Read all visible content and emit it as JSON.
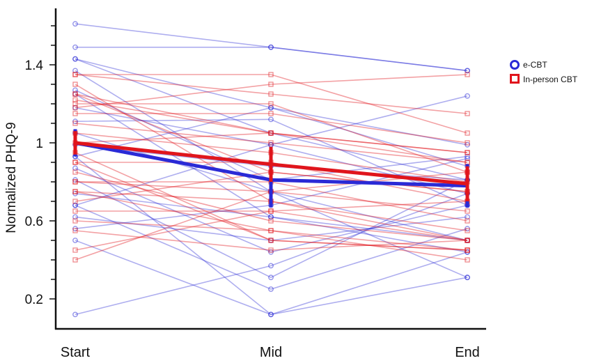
{
  "colors": {
    "ecbt": "#2a2ad6",
    "inperson": "#e0151c",
    "axis": "#111111"
  },
  "chart_data": {
    "type": "line",
    "categories": [
      "Start",
      "Mid",
      "End"
    ],
    "ylabel": "Normalized PHQ-9",
    "xlabel": "",
    "ylim": [
      0.08,
      1.68
    ],
    "yticks_labeled": [
      0.2,
      0.6,
      1,
      1.4
    ],
    "yticks_labels": [
      "0.2",
      "0.6",
      "1",
      "1.4"
    ],
    "yticks_minor": [
      0.3,
      0.4,
      0.5,
      0.7,
      0.8,
      0.9,
      1.1,
      1.2,
      1.3,
      1.5,
      1.6
    ],
    "grid": false,
    "legend": {
      "position": "right",
      "entries": [
        {
          "name": "e-CBT",
          "marker": "circle",
          "color": "#2a2ad6"
        },
        {
          "name": "In-person CBT",
          "marker": "square",
          "color": "#e0151c"
        }
      ]
    },
    "mean_series": [
      {
        "name": "e-CBT",
        "values": [
          1.0,
          0.81,
          0.78
        ],
        "error": [
          0.07,
          0.14,
          0.11
        ]
      },
      {
        "name": "In-person CBT",
        "values": [
          1.0,
          0.89,
          0.79
        ],
        "error": [
          0.06,
          0.09,
          0.09
        ]
      }
    ],
    "individual_series": {
      "e-CBT": [
        [
          1.61,
          1.49,
          1.37
        ],
        [
          1.49,
          1.49,
          1.37
        ],
        [
          1.43,
          1.18,
          0.88
        ],
        [
          1.43,
          1.05,
          0.81
        ],
        [
          1.25,
          0.62,
          0.44
        ],
        [
          1.18,
          0.99,
          0.74
        ],
        [
          1.11,
          1.12,
          0.68
        ],
        [
          1.05,
          0.75,
          0.5
        ],
        [
          0.99,
          0.88,
          0.81
        ],
        [
          0.93,
          0.12,
          0.31
        ],
        [
          0.87,
          0.44,
          0.68
        ],
        [
          0.81,
          0.31,
          0.81
        ],
        [
          0.74,
          0.62,
          0.5
        ],
        [
          0.68,
          0.99,
          1.24
        ],
        [
          0.62,
          0.5,
          0.62
        ],
        [
          0.56,
          0.68,
          0.92
        ],
        [
          0.5,
          0.12,
          0.44
        ],
        [
          0.12,
          0.37,
          0.74
        ],
        [
          0.93,
          1.18,
          0.99
        ],
        [
          1.27,
          0.81,
          0.93
        ],
        [
          1.37,
          0.75,
          0.31
        ],
        [
          0.68,
          0.25,
          0.56
        ]
      ],
      "In-person CBT": [
        [
          1.35,
          1.35,
          1.05
        ],
        [
          1.35,
          1.25,
          1.15
        ],
        [
          1.3,
          0.7,
          0.5
        ],
        [
          1.25,
          1.05,
          0.95
        ],
        [
          1.25,
          0.85,
          0.75
        ],
        [
          1.2,
          1.2,
          0.85
        ],
        [
          1.15,
          1.15,
          1.0
        ],
        [
          1.1,
          1.0,
          0.9
        ],
        [
          1.05,
          0.95,
          0.8
        ],
        [
          1.0,
          1.05,
          0.95
        ],
        [
          0.95,
          0.5,
          0.45
        ],
        [
          0.9,
          0.9,
          0.7
        ],
        [
          0.85,
          0.6,
          0.5
        ],
        [
          0.8,
          0.8,
          0.6
        ],
        [
          0.8,
          0.75,
          0.65
        ],
        [
          0.75,
          0.55,
          0.45
        ],
        [
          0.75,
          0.7,
          0.55
        ],
        [
          0.7,
          0.85,
          0.75
        ],
        [
          0.65,
          0.65,
          0.5
        ],
        [
          0.6,
          0.55,
          0.4
        ],
        [
          0.55,
          0.45,
          0.5
        ],
        [
          0.45,
          0.65,
          0.7
        ],
        [
          0.4,
          0.75,
          0.85
        ],
        [
          1.18,
          1.3,
          1.35
        ],
        [
          0.9,
          0.5,
          0.45
        ],
        [
          1.22,
          1.05,
          0.9
        ]
      ]
    }
  }
}
